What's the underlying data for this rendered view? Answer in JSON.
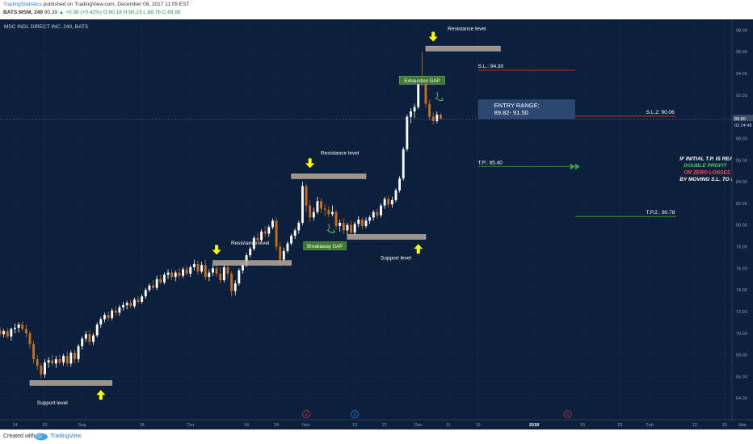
{
  "header": {
    "author": "TradingStatistics",
    "published": "published on TradingView.com, December 08, 2017 11:05 EST",
    "symbol": "BATS:MSM, 240",
    "last": "90.39",
    "change": "▲ +0.38 (+0.42%)",
    "ohlc": "O:90.18 H:90.23 L:89.76 C:89.80"
  },
  "footer": {
    "created": "Created with",
    "brand": "TradingView"
  },
  "colors": {
    "background": "#0c1f3b",
    "candle_up": "#ffffff",
    "candle_down": "#c76f1e",
    "arrow": "#ffff00",
    "level_box": "#b8a99a",
    "sl_line": "#b02020",
    "tp_line": "#2e8b2e",
    "gap_label_bg": "#3e7a2e",
    "entry_box": "#33507a",
    "axis_text": "#8aa0bb"
  },
  "chart_data": {
    "type": "candlestick",
    "title": "MSC INDL DIRECT INC, 240, BATS",
    "ylim": [
      62,
      99
    ],
    "x_range_days": [
      0,
      196
    ],
    "x_start_date": "2017-08-10",
    "y_ticks": [
      64,
      66,
      68,
      70,
      72,
      74,
      76,
      78,
      80,
      82,
      84,
      86,
      88,
      90,
      92,
      94,
      96,
      98
    ],
    "price_label": "89.80",
    "countdown_label": "02:24:48",
    "x_ticks": [
      {
        "t": 4,
        "label": "14"
      },
      {
        "t": 12,
        "label": "22"
      },
      {
        "t": 22,
        "label": "Sep"
      },
      {
        "t": 38,
        "label": "18"
      },
      {
        "t": 51,
        "label": "Oct"
      },
      {
        "t": 66,
        "label": "16"
      },
      {
        "t": 74,
        "label": "24"
      },
      {
        "t": 82,
        "label": "Nov"
      },
      {
        "t": 95,
        "label": "13"
      },
      {
        "t": 103,
        "label": "21"
      },
      {
        "t": 112,
        "label": "Dec"
      },
      {
        "t": 120,
        "label": "11"
      },
      {
        "t": 128,
        "label": "19"
      },
      {
        "t": 143,
        "label": "2018"
      },
      {
        "t": 156,
        "label": "15"
      },
      {
        "t": 166,
        "label": "23"
      },
      {
        "t": 174,
        "label": "Feb"
      },
      {
        "t": 186,
        "label": "12"
      },
      {
        "t": 194,
        "label": "20"
      },
      {
        "t": 204,
        "label": "Mar"
      }
    ],
    "event_markers": [
      {
        "t": 82,
        "label": "E",
        "color": "#c0364a"
      },
      {
        "t": 95,
        "label": "D",
        "color": "#2a7fd4"
      },
      {
        "t": 152,
        "label": "E",
        "color": "#c0364a"
      }
    ],
    "candles": [
      {
        "t": 0,
        "o": 70.3,
        "h": 70.6,
        "l": 69.7,
        "c": 69.9
      },
      {
        "t": 1,
        "o": 69.9,
        "h": 70.4,
        "l": 69.6,
        "c": 70.2
      },
      {
        "t": 2,
        "o": 70.2,
        "h": 70.5,
        "l": 69.5,
        "c": 69.7
      },
      {
        "t": 3,
        "o": 69.7,
        "h": 70.5,
        "l": 69.3,
        "c": 70.4
      },
      {
        "t": 4,
        "o": 70.4,
        "h": 70.9,
        "l": 70.0,
        "c": 70.5
      },
      {
        "t": 5,
        "o": 70.5,
        "h": 71.0,
        "l": 70.1,
        "c": 70.8
      },
      {
        "t": 6,
        "o": 70.8,
        "h": 71.1,
        "l": 70.2,
        "c": 70.4
      },
      {
        "t": 7,
        "o": 70.4,
        "h": 70.8,
        "l": 69.6,
        "c": 70.0
      },
      {
        "t": 8,
        "o": 70.0,
        "h": 70.2,
        "l": 68.6,
        "c": 69.0
      },
      {
        "t": 9,
        "o": 69.0,
        "h": 69.3,
        "l": 67.2,
        "c": 67.6
      },
      {
        "t": 10,
        "o": 67.6,
        "h": 68.0,
        "l": 66.6,
        "c": 67.0
      },
      {
        "t": 11,
        "o": 67.0,
        "h": 67.2,
        "l": 65.8,
        "c": 66.2
      },
      {
        "t": 12,
        "o": 66.2,
        "h": 67.6,
        "l": 65.9,
        "c": 67.3
      },
      {
        "t": 13,
        "o": 67.3,
        "h": 67.8,
        "l": 66.8,
        "c": 67.5
      },
      {
        "t": 14,
        "o": 67.5,
        "h": 68.0,
        "l": 67.0,
        "c": 67.2
      },
      {
        "t": 15,
        "o": 67.2,
        "h": 67.9,
        "l": 66.8,
        "c": 67.6
      },
      {
        "t": 16,
        "o": 67.6,
        "h": 68.0,
        "l": 67.1,
        "c": 67.3
      },
      {
        "t": 17,
        "o": 67.3,
        "h": 68.1,
        "l": 67.0,
        "c": 67.9
      },
      {
        "t": 18,
        "o": 67.9,
        "h": 68.3,
        "l": 66.9,
        "c": 67.2
      },
      {
        "t": 19,
        "o": 67.2,
        "h": 68.4,
        "l": 66.9,
        "c": 68.2
      },
      {
        "t": 20,
        "o": 68.2,
        "h": 68.5,
        "l": 67.2,
        "c": 67.6
      },
      {
        "t": 21,
        "o": 67.6,
        "h": 69.0,
        "l": 67.3,
        "c": 68.8
      },
      {
        "t": 22,
        "o": 68.8,
        "h": 69.7,
        "l": 68.5,
        "c": 69.5
      },
      {
        "t": 23,
        "o": 69.5,
        "h": 70.2,
        "l": 69.2,
        "c": 69.9
      },
      {
        "t": 24,
        "o": 69.9,
        "h": 70.3,
        "l": 68.9,
        "c": 69.2
      },
      {
        "t": 25,
        "o": 69.2,
        "h": 70.0,
        "l": 68.9,
        "c": 69.8
      },
      {
        "t": 26,
        "o": 69.8,
        "h": 71.0,
        "l": 69.6,
        "c": 70.8
      },
      {
        "t": 27,
        "o": 70.8,
        "h": 71.5,
        "l": 70.5,
        "c": 71.3
      },
      {
        "t": 28,
        "o": 71.3,
        "h": 71.9,
        "l": 71.0,
        "c": 71.7
      },
      {
        "t": 29,
        "o": 71.7,
        "h": 72.0,
        "l": 71.1,
        "c": 71.4
      },
      {
        "t": 30,
        "o": 71.4,
        "h": 72.3,
        "l": 71.2,
        "c": 72.1
      },
      {
        "t": 31,
        "o": 72.1,
        "h": 72.5,
        "l": 71.6,
        "c": 71.9
      },
      {
        "t": 32,
        "o": 71.9,
        "h": 72.6,
        "l": 71.6,
        "c": 72.4
      },
      {
        "t": 33,
        "o": 72.4,
        "h": 72.9,
        "l": 72.1,
        "c": 72.6
      },
      {
        "t": 34,
        "o": 72.6,
        "h": 73.0,
        "l": 72.2,
        "c": 72.8
      },
      {
        "t": 35,
        "o": 72.8,
        "h": 73.1,
        "l": 72.3,
        "c": 72.5
      },
      {
        "t": 36,
        "o": 72.5,
        "h": 73.3,
        "l": 72.3,
        "c": 73.1
      },
      {
        "t": 37,
        "o": 73.1,
        "h": 73.4,
        "l": 72.7,
        "c": 72.9
      },
      {
        "t": 38,
        "o": 72.9,
        "h": 73.6,
        "l": 72.7,
        "c": 73.4
      },
      {
        "t": 39,
        "o": 73.4,
        "h": 74.2,
        "l": 73.2,
        "c": 74.0
      },
      {
        "t": 40,
        "o": 74.0,
        "h": 74.6,
        "l": 73.8,
        "c": 74.4
      },
      {
        "t": 41,
        "o": 74.4,
        "h": 74.9,
        "l": 74.0,
        "c": 74.2
      },
      {
        "t": 42,
        "o": 74.2,
        "h": 75.3,
        "l": 74.0,
        "c": 75.0
      },
      {
        "t": 43,
        "o": 75.0,
        "h": 75.4,
        "l": 74.5,
        "c": 74.7
      },
      {
        "t": 44,
        "o": 74.7,
        "h": 75.6,
        "l": 74.5,
        "c": 75.4
      },
      {
        "t": 45,
        "o": 75.4,
        "h": 75.9,
        "l": 75.0,
        "c": 75.6
      },
      {
        "t": 46,
        "o": 75.6,
        "h": 75.9,
        "l": 74.9,
        "c": 75.2
      },
      {
        "t": 47,
        "o": 75.2,
        "h": 75.8,
        "l": 74.8,
        "c": 75.6
      },
      {
        "t": 48,
        "o": 75.6,
        "h": 76.0,
        "l": 75.0,
        "c": 75.3
      },
      {
        "t": 49,
        "o": 75.3,
        "h": 76.1,
        "l": 75.1,
        "c": 75.9
      },
      {
        "t": 50,
        "o": 75.9,
        "h": 76.2,
        "l": 75.3,
        "c": 75.5
      },
      {
        "t": 51,
        "o": 75.5,
        "h": 76.3,
        "l": 75.2,
        "c": 76.1
      },
      {
        "t": 52,
        "o": 76.1,
        "h": 76.8,
        "l": 75.8,
        "c": 76.4
      },
      {
        "t": 53,
        "o": 76.4,
        "h": 76.7,
        "l": 75.4,
        "c": 75.7
      },
      {
        "t": 54,
        "o": 75.7,
        "h": 76.6,
        "l": 75.5,
        "c": 76.3
      },
      {
        "t": 55,
        "o": 76.3,
        "h": 76.8,
        "l": 74.9,
        "c": 75.2
      },
      {
        "t": 56,
        "o": 75.2,
        "h": 75.9,
        "l": 74.8,
        "c": 75.6
      },
      {
        "t": 57,
        "o": 75.6,
        "h": 76.3,
        "l": 75.3,
        "c": 76.0
      },
      {
        "t": 58,
        "o": 76.0,
        "h": 76.5,
        "l": 75.2,
        "c": 75.5
      },
      {
        "t": 59,
        "o": 75.5,
        "h": 76.1,
        "l": 74.6,
        "c": 74.9
      },
      {
        "t": 60,
        "o": 74.9,
        "h": 76.3,
        "l": 74.7,
        "c": 76.1
      },
      {
        "t": 61,
        "o": 76.1,
        "h": 76.5,
        "l": 75.1,
        "c": 75.5
      },
      {
        "t": 62,
        "o": 75.5,
        "h": 75.7,
        "l": 73.4,
        "c": 73.9
      },
      {
        "t": 63,
        "o": 73.9,
        "h": 74.9,
        "l": 73.5,
        "c": 74.6
      },
      {
        "t": 64,
        "o": 74.6,
        "h": 76.0,
        "l": 74.4,
        "c": 75.8
      },
      {
        "t": 65,
        "o": 75.8,
        "h": 76.5,
        "l": 75.5,
        "c": 76.3
      },
      {
        "t": 66,
        "o": 76.3,
        "h": 77.4,
        "l": 76.1,
        "c": 77.2
      },
      {
        "t": 67,
        "o": 77.2,
        "h": 78.0,
        "l": 77.0,
        "c": 77.8
      },
      {
        "t": 68,
        "o": 77.8,
        "h": 79.0,
        "l": 77.6,
        "c": 78.8
      },
      {
        "t": 69,
        "o": 78.8,
        "h": 79.3,
        "l": 78.2,
        "c": 78.6
      },
      {
        "t": 70,
        "o": 78.6,
        "h": 79.6,
        "l": 78.4,
        "c": 79.4
      },
      {
        "t": 71,
        "o": 79.4,
        "h": 79.9,
        "l": 78.9,
        "c": 79.2
      },
      {
        "t": 72,
        "o": 79.2,
        "h": 80.0,
        "l": 78.9,
        "c": 79.8
      },
      {
        "t": 73,
        "o": 79.8,
        "h": 80.6,
        "l": 79.6,
        "c": 80.4
      },
      {
        "t": 74,
        "o": 80.4,
        "h": 80.7,
        "l": 77.6,
        "c": 78.0
      },
      {
        "t": 75,
        "o": 78.0,
        "h": 78.4,
        "l": 76.2,
        "c": 76.8
      },
      {
        "t": 76,
        "o": 76.8,
        "h": 77.9,
        "l": 76.6,
        "c": 77.6
      },
      {
        "t": 77,
        "o": 77.6,
        "h": 78.5,
        "l": 77.4,
        "c": 78.3
      },
      {
        "t": 78,
        "o": 78.3,
        "h": 79.2,
        "l": 78.1,
        "c": 79.0
      },
      {
        "t": 79,
        "o": 79.0,
        "h": 79.7,
        "l": 78.7,
        "c": 79.5
      },
      {
        "t": 80,
        "o": 79.5,
        "h": 80.4,
        "l": 79.2,
        "c": 80.2
      },
      {
        "t": 81,
        "o": 80.2,
        "h": 84.0,
        "l": 80.0,
        "c": 83.6
      },
      {
        "t": 82,
        "o": 83.6,
        "h": 83.8,
        "l": 81.2,
        "c": 81.8
      },
      {
        "t": 83,
        "o": 81.8,
        "h": 82.3,
        "l": 80.3,
        "c": 80.7
      },
      {
        "t": 84,
        "o": 80.7,
        "h": 81.6,
        "l": 80.4,
        "c": 81.2
      },
      {
        "t": 85,
        "o": 81.2,
        "h": 82.6,
        "l": 81.0,
        "c": 82.2
      },
      {
        "t": 86,
        "o": 82.2,
        "h": 82.5,
        "l": 81.1,
        "c": 81.5
      },
      {
        "t": 87,
        "o": 81.5,
        "h": 81.9,
        "l": 80.8,
        "c": 81.4
      },
      {
        "t": 88,
        "o": 81.4,
        "h": 81.7,
        "l": 80.7,
        "c": 81.0
      },
      {
        "t": 89,
        "o": 81.0,
        "h": 81.8,
        "l": 80.8,
        "c": 81.2
      },
      {
        "t": 90,
        "o": 81.2,
        "h": 81.4,
        "l": 79.6,
        "c": 79.9
      },
      {
        "t": 91,
        "o": 79.9,
        "h": 80.5,
        "l": 79.4,
        "c": 80.2
      },
      {
        "t": 92,
        "o": 80.2,
        "h": 80.6,
        "l": 79.2,
        "c": 79.5
      },
      {
        "t": 93,
        "o": 79.5,
        "h": 80.2,
        "l": 79.1,
        "c": 80.0
      },
      {
        "t": 94,
        "o": 80.0,
        "h": 80.4,
        "l": 78.9,
        "c": 79.3
      },
      {
        "t": 95,
        "o": 79.3,
        "h": 80.3,
        "l": 79.0,
        "c": 80.1
      },
      {
        "t": 96,
        "o": 80.1,
        "h": 80.8,
        "l": 79.8,
        "c": 80.5
      },
      {
        "t": 97,
        "o": 80.5,
        "h": 80.7,
        "l": 79.6,
        "c": 79.9
      },
      {
        "t": 98,
        "o": 79.9,
        "h": 80.7,
        "l": 79.7,
        "c": 80.4
      },
      {
        "t": 99,
        "o": 80.4,
        "h": 80.9,
        "l": 80.1,
        "c": 80.7
      },
      {
        "t": 100,
        "o": 80.7,
        "h": 81.4,
        "l": 80.4,
        "c": 81.2
      },
      {
        "t": 101,
        "o": 81.2,
        "h": 81.5,
        "l": 80.6,
        "c": 80.9
      },
      {
        "t": 102,
        "o": 80.9,
        "h": 82.0,
        "l": 80.7,
        "c": 81.8
      },
      {
        "t": 103,
        "o": 81.8,
        "h": 82.6,
        "l": 81.5,
        "c": 82.4
      },
      {
        "t": 104,
        "o": 82.4,
        "h": 82.7,
        "l": 81.6,
        "c": 81.9
      },
      {
        "t": 105,
        "o": 81.9,
        "h": 82.6,
        "l": 81.6,
        "c": 82.3
      },
      {
        "t": 106,
        "o": 82.3,
        "h": 83.4,
        "l": 82.1,
        "c": 83.2
      },
      {
        "t": 107,
        "o": 83.2,
        "h": 84.5,
        "l": 83.0,
        "c": 84.3
      },
      {
        "t": 108,
        "o": 84.3,
        "h": 87.2,
        "l": 84.1,
        "c": 87.0
      },
      {
        "t": 109,
        "o": 87.0,
        "h": 90.2,
        "l": 86.8,
        "c": 90.0
      },
      {
        "t": 110,
        "o": 90.0,
        "h": 90.8,
        "l": 89.4,
        "c": 90.5
      },
      {
        "t": 111,
        "o": 90.5,
        "h": 91.2,
        "l": 89.9,
        "c": 90.9
      },
      {
        "t": 112,
        "o": 90.9,
        "h": 93.6,
        "l": 90.7,
        "c": 93.4
      },
      {
        "t": 113,
        "o": 93.4,
        "h": 96.0,
        "l": 92.8,
        "c": 93.0
      },
      {
        "t": 114,
        "o": 93.0,
        "h": 93.4,
        "l": 90.8,
        "c": 91.2
      },
      {
        "t": 115,
        "o": 91.2,
        "h": 91.6,
        "l": 89.7,
        "c": 90.0
      },
      {
        "t": 116,
        "o": 90.0,
        "h": 90.4,
        "l": 89.3,
        "c": 89.6
      },
      {
        "t": 117,
        "o": 89.6,
        "h": 90.5,
        "l": 89.4,
        "c": 90.2
      },
      {
        "t": 118,
        "o": 90.2,
        "h": 90.3,
        "l": 89.8,
        "c": 89.8
      }
    ],
    "annotations": {
      "levels": [
        {
          "name": "support-level-1",
          "t0": 8,
          "t1": 30,
          "price": 65.4,
          "label": "Support level",
          "label_t": 14,
          "label_price": 63.4,
          "arrow": "up",
          "arrow_t": 27,
          "arrow_price": 64.3
        },
        {
          "name": "resistance-level-1",
          "t0": 57,
          "t1": 78,
          "price": 76.5,
          "label": "Resistance level",
          "label_t": 67,
          "label_price": 78.2,
          "arrow": "down",
          "arrow_t": 58,
          "arrow_price": 77.7
        },
        {
          "name": "resistance-level-2",
          "t0": 78,
          "t1": 98,
          "price": 84.5,
          "label": "Resistance level",
          "label_t": 91,
          "label_price": 86.5,
          "arrow": "down",
          "arrow_t": 83,
          "arrow_price": 85.7
        },
        {
          "name": "support-level-2",
          "t0": 93,
          "t1": 114,
          "price": 78.9,
          "label": "Support level",
          "label_t": 106,
          "label_price": 76.8,
          "arrow": "up",
          "arrow_t": 112,
          "arrow_price": 77.8
        },
        {
          "name": "resistance-level-3",
          "t0": 114,
          "t1": 134,
          "price": 96.3,
          "label": "Resistance level",
          "label_t": 125,
          "label_price": 98.0,
          "arrow": "down",
          "arrow_t": 116,
          "arrow_price": 97.4
        }
      ],
      "gaps": [
        {
          "name": "breakaway-gap",
          "label": "Breakaway GAP",
          "t": 87,
          "price": 78.0,
          "curl_t": 89,
          "curl_price": 79.5
        },
        {
          "name": "exhaustion-gap",
          "label": "Exhaustion GAP",
          "t": 113,
          "price": 93.3,
          "curl_t": 118,
          "curl_price": 91.7
        }
      ],
      "entry_range": {
        "label": "ENTRY RANGE:",
        "value": "89.82- 91.50",
        "t0": 128,
        "t1": 154,
        "p_top": 91.6,
        "p_bot": 89.8
      },
      "stop_losses": [
        {
          "label": "S.L.: 94.30",
          "price": 94.3,
          "t0": 128,
          "t1": 154,
          "label_t": 128
        },
        {
          "label": "S.L.2: 90.06",
          "price": 90.06,
          "t0": 154,
          "t1": 181,
          "label_t": 173
        }
      ],
      "take_profits": [
        {
          "label": "T.P.: 85.40",
          "price": 85.4,
          "t0": 128,
          "t1": 154,
          "label_t": 128,
          "arrow_t": 154
        },
        {
          "label": "T.P.2.: 80.78",
          "price": 80.78,
          "t0": 154,
          "t1": 181,
          "label_t": 173
        }
      ],
      "note": {
        "lines": [
          "IF INITIAL T.P. IS REACHED",
          "DOUBLE PROFIT",
          "OR ZERO LOSSES",
          "BY MOVING S.L. TO BREAKEVEN."
        ],
        "line_colors": [
          "#ffffff",
          "#4bd14b",
          "#ff5a5a",
          "#ffffff"
        ],
        "t": 182,
        "price": 86.0
      }
    }
  }
}
